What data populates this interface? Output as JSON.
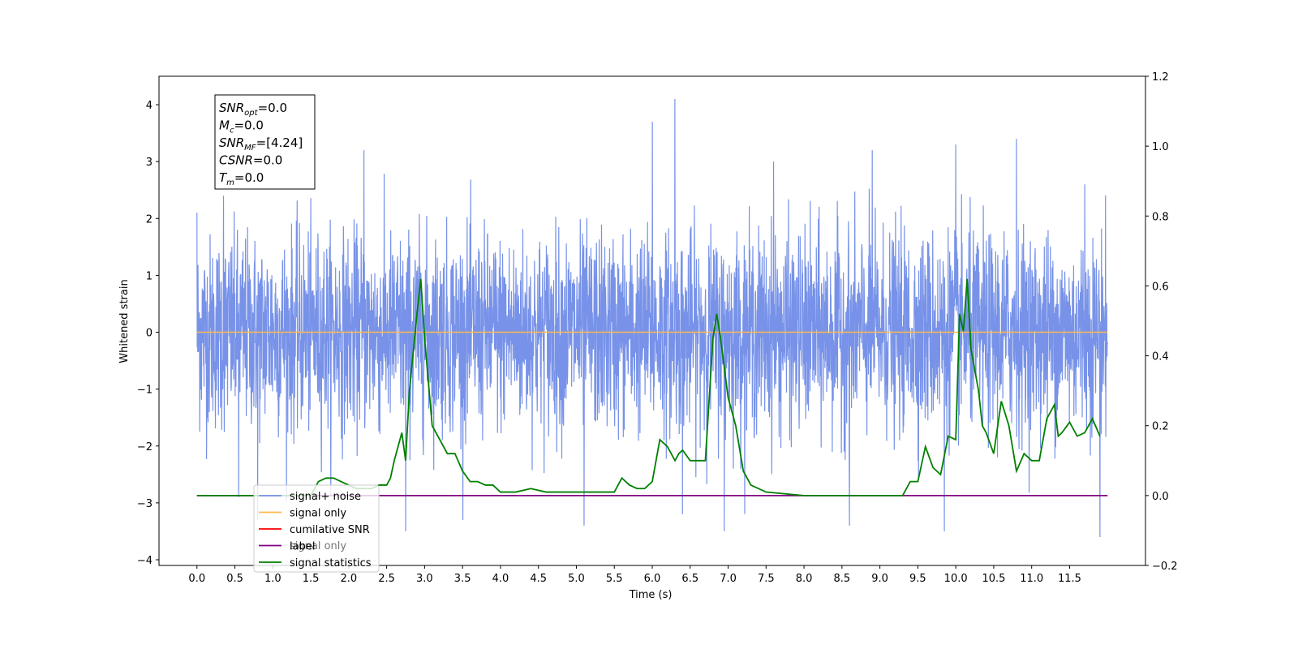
{
  "chart_data": {
    "type": "line",
    "xlabel": "Time (s)",
    "ylabel_left": "Whitened strain",
    "ylabel_right": "",
    "xlim": [
      -0.5,
      12.5
    ],
    "ylim_left": [
      -4.1,
      4.5
    ],
    "ylim_right": [
      -0.2,
      1.2
    ],
    "x_ticks": [
      "0.0",
      "0.5",
      "1.0",
      "1.5",
      "2.0",
      "2.5",
      "3.0",
      "3.5",
      "4.0",
      "4.5",
      "5.0",
      "5.5",
      "6.0",
      "6.5",
      "7.0",
      "7.5",
      "8.0",
      "8.5",
      "9.0",
      "9.5",
      "10.0",
      "10.5",
      "11.0",
      "11.5"
    ],
    "y_ticks_left": [
      "−4",
      "−3",
      "−2",
      "−1",
      "0",
      "1",
      "2",
      "3",
      "4"
    ],
    "y_ticks_right": [
      "−0.2",
      "0.0",
      "0.2",
      "0.4",
      "0.6",
      "0.8",
      "1.0",
      "1.2"
    ],
    "grid": false,
    "legend_position": "lower-left",
    "series": [
      {
        "name": "signal+ noise",
        "color": "#7792e8",
        "axis": "left",
        "style": "dense whitened noise, approx. sigma 0.85, time 0.0–12.0 s, peak near 6.3 s at 4.1",
        "peaks": [
          [
            0.0,
            2.1
          ],
          [
            0.35,
            2.4
          ],
          [
            2.2,
            3.2
          ],
          [
            6.0,
            3.7
          ],
          [
            6.3,
            4.1
          ],
          [
            7.6,
            3.0
          ],
          [
            8.9,
            3.2
          ],
          [
            10.0,
            3.3
          ],
          [
            10.8,
            3.4
          ],
          [
            11.7,
            2.6
          ]
        ],
        "troughs": [
          [
            0.55,
            -2.9
          ],
          [
            0.8,
            -3.3
          ],
          [
            2.75,
            -3.5
          ],
          [
            5.1,
            -3.4
          ],
          [
            6.4,
            -3.2
          ],
          [
            6.95,
            -3.5
          ],
          [
            8.6,
            -3.4
          ],
          [
            9.85,
            -3.5
          ],
          [
            11.9,
            -3.6
          ]
        ]
      },
      {
        "name": "signal only",
        "color": "#ffb84d",
        "axis": "left",
        "x": [
          0.0,
          12.0
        ],
        "y": [
          0.0,
          0.0
        ]
      },
      {
        "name": "cumilative SNR",
        "color": "#ff0000",
        "axis": "left",
        "x": [],
        "y": []
      },
      {
        "name": "label",
        "color": "#800080",
        "axis": "right",
        "x": [
          0.0,
          12.0
        ],
        "y": [
          0.0,
          0.0
        ]
      },
      {
        "name": "signal statistics",
        "color": "#008000",
        "axis": "right",
        "x": [
          0.0,
          1.5,
          1.6,
          1.7,
          1.8,
          1.9,
          2.0,
          2.1,
          2.2,
          2.3,
          2.4,
          2.5,
          2.55,
          2.6,
          2.7,
          2.75,
          2.8,
          2.9,
          2.95,
          3.0,
          3.1,
          3.2,
          3.3,
          3.4,
          3.5,
          3.6,
          3.7,
          3.8,
          3.9,
          4.0,
          4.2,
          4.4,
          4.6,
          5.0,
          5.5,
          5.6,
          5.7,
          5.8,
          5.9,
          6.0,
          6.1,
          6.2,
          6.3,
          6.35,
          6.4,
          6.5,
          6.6,
          6.7,
          6.8,
          6.85,
          6.9,
          7.0,
          7.1,
          7.2,
          7.3,
          7.5,
          8.0,
          8.5,
          9.0,
          9.3,
          9.4,
          9.5,
          9.6,
          9.7,
          9.8,
          9.9,
          10.0,
          10.05,
          10.1,
          10.15,
          10.2,
          10.3,
          10.35,
          10.4,
          10.5,
          10.6,
          10.7,
          10.8,
          10.9,
          11.0,
          11.1,
          11.2,
          11.3,
          11.35,
          11.4,
          11.5,
          11.6,
          11.7,
          11.8,
          11.9
        ],
        "y": [
          0.0,
          0.0,
          0.04,
          0.05,
          0.05,
          0.04,
          0.03,
          0.02,
          0.02,
          0.02,
          0.03,
          0.03,
          0.05,
          0.1,
          0.18,
          0.1,
          0.3,
          0.52,
          0.62,
          0.45,
          0.2,
          0.16,
          0.12,
          0.12,
          0.07,
          0.04,
          0.04,
          0.03,
          0.03,
          0.01,
          0.01,
          0.02,
          0.01,
          0.01,
          0.01,
          0.05,
          0.03,
          0.02,
          0.02,
          0.04,
          0.16,
          0.14,
          0.1,
          0.12,
          0.13,
          0.1,
          0.1,
          0.1,
          0.45,
          0.52,
          0.45,
          0.28,
          0.2,
          0.07,
          0.03,
          0.01,
          0.0,
          0.0,
          0.0,
          0.0,
          0.04,
          0.04,
          0.14,
          0.08,
          0.06,
          0.17,
          0.16,
          0.52,
          0.47,
          0.62,
          0.42,
          0.3,
          0.2,
          0.18,
          0.12,
          0.27,
          0.2,
          0.07,
          0.12,
          0.1,
          0.1,
          0.22,
          0.26,
          0.17,
          0.18,
          0.21,
          0.17,
          0.18,
          0.22,
          0.17
        ]
      }
    ],
    "annotation_lines": [
      {
        "base": "SNR",
        "sub": "opt",
        "value": "=0.0"
      },
      {
        "base": "M",
        "sub": "c",
        "value": "=0.0"
      },
      {
        "base": "SNR",
        "sub": "MF",
        "value": "=[4.24]"
      },
      {
        "base": "CSNR",
        "sub": "",
        "value": "=0.0"
      },
      {
        "base": "T",
        "sub": "m",
        "value": "=0.0"
      }
    ],
    "legend_overlap_text": "signal only"
  }
}
